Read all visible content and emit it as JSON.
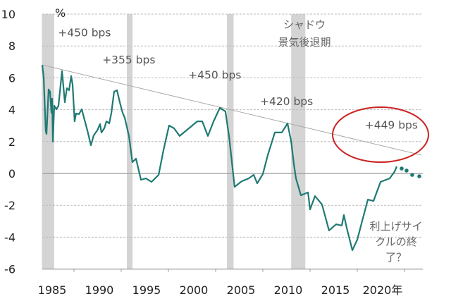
{
  "chart_data": {
    "type": "line",
    "title": "",
    "xlabel": "",
    "ylabel": "%",
    "ylim": [
      -6,
      10
    ],
    "xlim": [
      1981.6,
      2022
    ],
    "yticks": [
      "10",
      "8",
      "6",
      "4",
      "2",
      "0",
      "-2",
      "-4",
      "-6"
    ],
    "ytick_values": [
      10,
      8,
      6,
      4,
      2,
      0,
      -2,
      -4,
      -6
    ],
    "xticks": [
      "1985",
      "1990",
      "1995",
      "2000",
      "2005",
      "2010",
      "2015",
      "2020年"
    ],
    "xtick_values": [
      1985,
      1990,
      1995,
      2000,
      2005,
      2010,
      2015,
      2020
    ],
    "grid": true,
    "colors": {
      "line": "#1f7a73",
      "trend": "#aaaaaa",
      "recession": "#d4d4d4",
      "ellipse": "#cc2222",
      "negative_tick": "#8b2a2a"
    },
    "series": [
      {
        "style": "solid",
        "points": [
          [
            1981.64,
            6.81
          ],
          [
            1981.79,
            6.02
          ],
          [
            1982.01,
            2.7
          ],
          [
            1982.09,
            2.48
          ],
          [
            1982.31,
            5.27
          ],
          [
            1982.46,
            5.13
          ],
          [
            1982.61,
            3.81
          ],
          [
            1982.69,
            4.69
          ],
          [
            1982.76,
            2.0
          ],
          [
            1982.91,
            4.25
          ],
          [
            1983.13,
            4.03
          ],
          [
            1983.36,
            4.25
          ],
          [
            1983.73,
            6.42
          ],
          [
            1984.03,
            4.47
          ],
          [
            1984.25,
            5.35
          ],
          [
            1984.48,
            5.22
          ],
          [
            1984.7,
            6.11
          ],
          [
            1984.85,
            5.58
          ],
          [
            1985.07,
            3.27
          ],
          [
            1985.22,
            3.76
          ],
          [
            1985.52,
            3.72
          ],
          [
            1985.82,
            4.03
          ],
          [
            1986.12,
            3.36
          ],
          [
            1986.42,
            2.7
          ],
          [
            1986.79,
            1.77
          ],
          [
            1987.09,
            2.39
          ],
          [
            1987.46,
            2.7
          ],
          [
            1987.76,
            3.1
          ],
          [
            1987.91,
            2.57
          ],
          [
            1988.21,
            2.83
          ],
          [
            1988.43,
            3.27
          ],
          [
            1988.73,
            3.14
          ],
          [
            1988.96,
            3.81
          ],
          [
            1989.25,
            5.13
          ],
          [
            1989.55,
            5.22
          ],
          [
            1989.85,
            4.47
          ],
          [
            1990.15,
            3.81
          ],
          [
            1990.37,
            3.5
          ],
          [
            1990.82,
            2.35
          ],
          [
            1991.19,
            0.71
          ],
          [
            1991.57,
            0.93
          ],
          [
            1992.09,
            -0.4
          ],
          [
            1992.61,
            -0.31
          ],
          [
            1993.21,
            -0.53
          ],
          [
            1993.96,
            -0.09
          ],
          [
            1994.48,
            1.46
          ],
          [
            1995.07,
            3.01
          ],
          [
            1995.6,
            2.83
          ],
          [
            1996.19,
            2.35
          ],
          [
            1997.09,
            2.79
          ],
          [
            1998.06,
            3.27
          ],
          [
            1998.58,
            3.27
          ],
          [
            1999.18,
            2.35
          ],
          [
            1999.78,
            3.27
          ],
          [
            2000.45,
            4.12
          ],
          [
            2001.04,
            3.89
          ],
          [
            2001.42,
            2.35
          ],
          [
            2002.01,
            -0.84
          ],
          [
            2002.76,
            -0.49
          ],
          [
            2003.51,
            -0.31
          ],
          [
            2004.03,
            -0.09
          ],
          [
            2004.4,
            -0.62
          ],
          [
            2005.0,
            -0.04
          ],
          [
            2005.52,
            1.15
          ],
          [
            2006.27,
            2.57
          ],
          [
            2007.01,
            2.57
          ],
          [
            2007.61,
            3.14
          ],
          [
            2007.99,
            2.04
          ],
          [
            2008.28,
            0.58
          ],
          [
            2008.51,
            -0.31
          ],
          [
            2009.03,
            -1.37
          ],
          [
            2009.78,
            -1.19
          ],
          [
            2010.0,
            -2.26
          ],
          [
            2010.52,
            -1.42
          ],
          [
            2011.27,
            -1.95
          ],
          [
            2012.01,
            -3.58
          ],
          [
            2012.76,
            -3.19
          ],
          [
            2013.36,
            -3.27
          ],
          [
            2013.58,
            -2.61
          ],
          [
            2013.88,
            -3.41
          ],
          [
            2014.48,
            -4.82
          ],
          [
            2015.0,
            -4.16
          ],
          [
            2015.45,
            -3.14
          ],
          [
            2016.12,
            -1.64
          ],
          [
            2016.72,
            -1.73
          ],
          [
            2017.46,
            -0.53
          ],
          [
            2018.43,
            -0.31
          ],
          [
            2018.96,
            0.13
          ],
          [
            2019.18,
            0.44
          ]
        ]
      },
      {
        "style": "dotted",
        "points": [
          [
            2019.7,
            0.31
          ],
          [
            2020.22,
            0.18
          ],
          [
            2020.82,
            -0.09
          ],
          [
            2021.57,
            -0.18
          ]
        ]
      }
    ],
    "trend_line": [
      [
        1981.64,
        6.81
      ],
      [
        2021.8,
        1.15
      ]
    ],
    "recession_periods": [
      [
        1981.6,
        1982.9
      ],
      [
        1990.6,
        1991.2
      ],
      [
        2001.2,
        2001.9
      ],
      [
        2008.0,
        2009.5
      ]
    ],
    "annotations": [
      {
        "text": "+450 bps",
        "x": 1983.3,
        "y": 8.6
      },
      {
        "text": "+355 bps",
        "x": 1988.0,
        "y": 6.9
      },
      {
        "text": "+450 bps",
        "x": 1997.1,
        "y": 5.95
      },
      {
        "text": "+420 bps",
        "x": 2004.7,
        "y": 4.3
      },
      {
        "text": "+449 bps",
        "x": 2015.8,
        "y": 2.8
      }
    ],
    "legend_label_lines": [
      "シャドウ",
      "景気後退期"
    ],
    "note_lines": [
      "利上げサイ",
      "クルの終",
      "了？"
    ]
  }
}
